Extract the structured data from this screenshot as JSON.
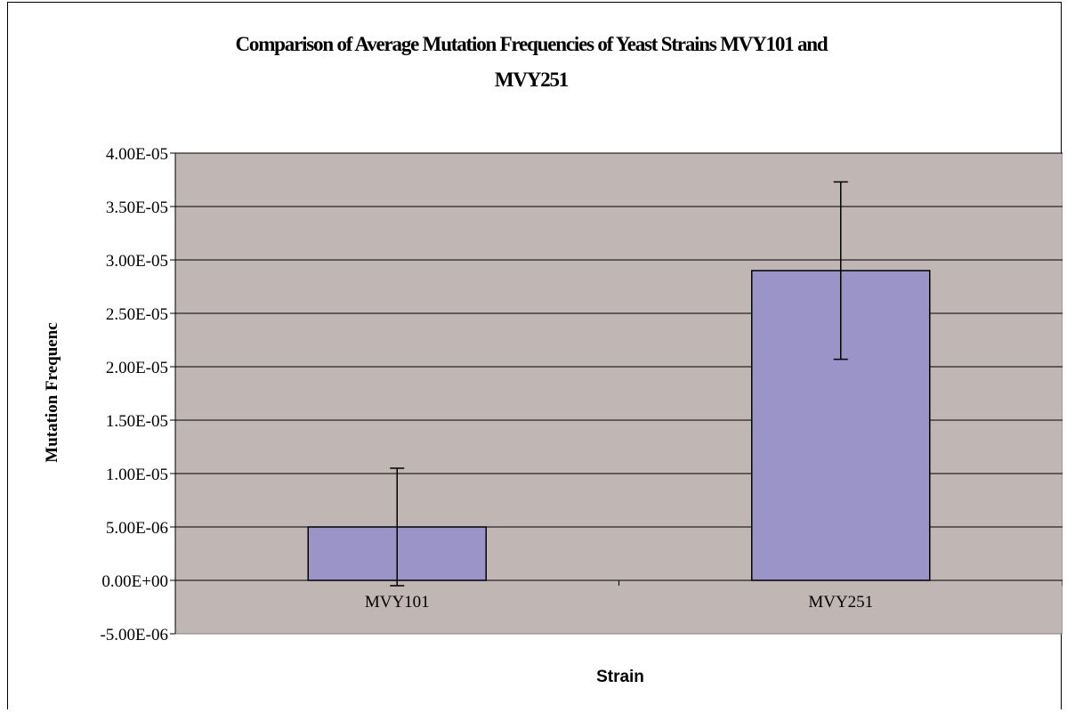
{
  "chart_data": {
    "type": "bar",
    "title": "Comparison of Average Mutation Frequencies of Yeast Strains MVY101 and MVY251",
    "title_lines": [
      "Comparison of Average Mutation Frequencies of Yeast Strains MVY101 and",
      "MVY251"
    ],
    "xlabel": "Strain",
    "ylabel": "Mutation Frequenc",
    "categories": [
      "MVY101",
      "MVY251"
    ],
    "values": [
      5e-06,
      2.9e-05
    ],
    "error_bars": [
      5.5e-06,
      8.3e-06
    ],
    "ylim": [
      -5e-06,
      4e-05
    ],
    "yticks": [
      -5e-06,
      0,
      5e-06,
      1e-05,
      1.5e-05,
      2e-05,
      2.5e-05,
      3e-05,
      3.5e-05,
      4e-05
    ],
    "ytick_labels": [
      "-5.00E-06",
      "0.00E+00",
      "5.00E-06",
      "1.00E-05",
      "1.50E-05",
      "2.00E-05",
      "2.50E-05",
      "3.00E-05",
      "3.50E-05",
      "4.00E-05"
    ],
    "grid": true,
    "legend": "none",
    "colors": {
      "plot_background": "#c0b6b3",
      "bar_fill": "#9b94c9",
      "bar_stroke": "#000000",
      "gridline": "#000000"
    }
  }
}
